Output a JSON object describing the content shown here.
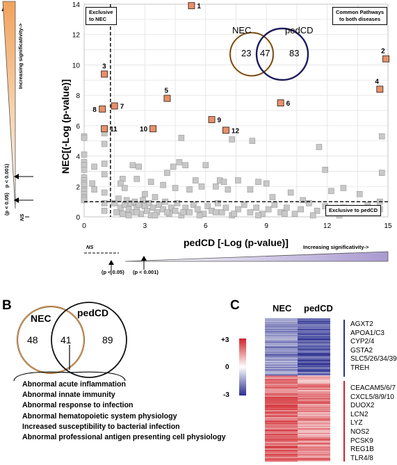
{
  "panels": {
    "a": "A",
    "b": "B",
    "c": "C"
  },
  "panel_a": {
    "left_arrow_label": "Increasing significativity->",
    "left_p1": "(p < 0.05)",
    "left_p2": "p < 0.001)",
    "left_ns": "NS",
    "bottom_ns": "NS",
    "bottom_p1": "(p < 0.05)",
    "bottom_p2": "(p < 0.001)",
    "bottom_arrow_label": "Increasing significativity->",
    "exclusive_nec_line1": "Exclusive",
    "exclusive_nec_line2": "to  NEC",
    "common_line1": "Common Pathways",
    "common_line2": "to both diseases",
    "exclusive_pedcd": "Exclusive to  pedCD",
    "venn": {
      "left_label": "NEC",
      "right_label": "pedCD",
      "left_only": "23",
      "both": "47",
      "right_only": "83"
    }
  },
  "chart_data": [
    {
      "type": "scatter",
      "xlabel": "pedCD [-Log (p-value)]",
      "ylabel": "NEC[(-Log (p-value)]",
      "xlim": [
        0,
        15
      ],
      "ylim": [
        0,
        14
      ],
      "xticks": [
        0,
        3,
        6,
        9,
        12,
        15
      ],
      "yticks": [
        0,
        2,
        4,
        6,
        8,
        10,
        12,
        14
      ],
      "grid": true,
      "thresholds": {
        "x": 1.3,
        "y": 1.0
      },
      "colors": {
        "highlight": "#e8906a",
        "highlight_edge": "#3a2a20",
        "grey": "#c8c8c8",
        "grey_edge": "#9a9a9a"
      },
      "highlighted": [
        {
          "label": "1",
          "x": 5.3,
          "y": 13.9
        },
        {
          "label": "2",
          "x": 14.9,
          "y": 10.4
        },
        {
          "label": "3",
          "x": 1.0,
          "y": 9.4
        },
        {
          "label": "4",
          "x": 14.6,
          "y": 8.4
        },
        {
          "label": "5",
          "x": 4.1,
          "y": 7.8
        },
        {
          "label": "6",
          "x": 9.7,
          "y": 7.5
        },
        {
          "label": "7",
          "x": 1.5,
          "y": 7.3
        },
        {
          "label": "8",
          "x": 0.9,
          "y": 7.1
        },
        {
          "label": "9",
          "x": 6.3,
          "y": 6.4
        },
        {
          "label": "10",
          "x": 3.4,
          "y": 5.8
        },
        {
          "label": "11",
          "x": 1.0,
          "y": 5.8
        },
        {
          "label": "12",
          "x": 7.0,
          "y": 5.7
        }
      ],
      "grey_points": [
        [
          0,
          5.3
        ],
        [
          0,
          5.2
        ],
        [
          0,
          4.1
        ],
        [
          0,
          3.6
        ],
        [
          0,
          3.4
        ],
        [
          0,
          3.1
        ],
        [
          0,
          2.6
        ],
        [
          0,
          2.4
        ],
        [
          0,
          2.2
        ],
        [
          0,
          2.1
        ],
        [
          0,
          1.8
        ],
        [
          0,
          1.7
        ],
        [
          0,
          1.5
        ],
        [
          0,
          1.3
        ],
        [
          0,
          1.2
        ],
        [
          0,
          1.1
        ],
        [
          0.5,
          3.3
        ],
        [
          0.5,
          1.8
        ],
        [
          0.4,
          2.2
        ],
        [
          1.0,
          5.5
        ],
        [
          1.0,
          4.8
        ],
        [
          1.0,
          3.5
        ],
        [
          1.0,
          2.8
        ],
        [
          1.0,
          1.6
        ],
        [
          1.0,
          0.4
        ],
        [
          1.0,
          0.9
        ],
        [
          1.9,
          2.5
        ],
        [
          1.8,
          2.2
        ],
        [
          2.4,
          3.4
        ],
        [
          2.0,
          1.9
        ],
        [
          2.7,
          3.3
        ],
        [
          2.6,
          2.5
        ],
        [
          3.0,
          1.5
        ],
        [
          3.3,
          2.3
        ],
        [
          3.5,
          1.3
        ],
        [
          3.9,
          2.1
        ],
        [
          4.1,
          2.9
        ],
        [
          4.4,
          3.3
        ],
        [
          4.5,
          1.9
        ],
        [
          4.7,
          3.6
        ],
        [
          5.0,
          3.4
        ],
        [
          5.2,
          1.8
        ],
        [
          5.5,
          2.4
        ],
        [
          5.8,
          2.0
        ],
        [
          6.0,
          3.4
        ],
        [
          6.5,
          2.0
        ],
        [
          6.7,
          2.4
        ],
        [
          6.9,
          2.3
        ],
        [
          7.1,
          1.8
        ],
        [
          7.6,
          2.4
        ],
        [
          8.2,
          1.8
        ],
        [
          8.6,
          2.3
        ],
        [
          9.0,
          2.2
        ],
        [
          9.3,
          1.3
        ],
        [
          10.2,
          1.6
        ],
        [
          10.8,
          1.1
        ],
        [
          11.6,
          4.6
        ],
        [
          12.2,
          1.7
        ],
        [
          12.8,
          1.9
        ],
        [
          13.6,
          1.5
        ],
        [
          11.9,
          3.1
        ],
        [
          14.7,
          2.9
        ],
        [
          14.6,
          1.0
        ],
        [
          14.7,
          5.3
        ],
        [
          7.3,
          5.1
        ],
        [
          4.8,
          5.2
        ],
        [
          8.3,
          5.0
        ],
        [
          1.5,
          0.9
        ],
        [
          1.7,
          1.2
        ],
        [
          1.8,
          0.6
        ],
        [
          2.0,
          0.8
        ],
        [
          2.1,
          1.1
        ],
        [
          2.2,
          0.5
        ],
        [
          2.3,
          0.9
        ],
        [
          2.4,
          0.3
        ],
        [
          2.5,
          1.0
        ],
        [
          2.6,
          0.6
        ],
        [
          2.7,
          0.8
        ],
        [
          2.8,
          0.2
        ],
        [
          2.9,
          1.1
        ],
        [
          3.0,
          0.7
        ],
        [
          3.1,
          0.4
        ],
        [
          3.2,
          0.9
        ],
        [
          3.3,
          0.1
        ],
        [
          3.4,
          0.6
        ],
        [
          3.6,
          0.3
        ],
        [
          3.7,
          0.8
        ],
        [
          3.9,
          0.5
        ],
        [
          4.0,
          1.0
        ],
        [
          4.2,
          0.2
        ],
        [
          4.3,
          0.6
        ],
        [
          4.5,
          0.4
        ],
        [
          4.6,
          0.9
        ],
        [
          4.8,
          0.1
        ],
        [
          5.0,
          0.6
        ],
        [
          5.2,
          0.3
        ],
        [
          5.4,
          0.8
        ],
        [
          5.6,
          0.5
        ],
        [
          5.9,
          0.2
        ],
        [
          6.1,
          0.7
        ],
        [
          6.3,
          0.4
        ],
        [
          6.6,
          0.9
        ],
        [
          6.8,
          0.3
        ],
        [
          7.0,
          0.6
        ],
        [
          7.3,
          0.1
        ],
        [
          7.6,
          0.5
        ],
        [
          7.9,
          0.8
        ],
        [
          8.2,
          0.3
        ],
        [
          8.5,
          0.6
        ],
        [
          8.8,
          0.2
        ],
        [
          9.1,
          0.5
        ],
        [
          9.4,
          0.8
        ],
        [
          9.7,
          0.3
        ],
        [
          10.0,
          0.6
        ],
        [
          10.4,
          0.2
        ],
        [
          10.7,
          0.5
        ],
        [
          11.1,
          0.9
        ],
        [
          11.5,
          0.4
        ],
        [
          11.9,
          0.7
        ],
        [
          12.3,
          0.3
        ],
        [
          12.8,
          0.6
        ],
        [
          13.4,
          0.4
        ],
        [
          14.0,
          0.8
        ],
        [
          14.6,
          0.5
        ],
        [
          1.6,
          0.3
        ],
        [
          1.9,
          0.2
        ],
        [
          2.2,
          0.1
        ],
        [
          2.6,
          0.3
        ],
        [
          3.5,
          0.1
        ],
        [
          4.1,
          0.3
        ],
        [
          4.9,
          0.3
        ],
        [
          5.7,
          0.1
        ],
        [
          6.5,
          0.3
        ],
        [
          7.4,
          0.2
        ],
        [
          8.6,
          0.1
        ],
        [
          9.9,
          0.2
        ],
        [
          11.3,
          0.1
        ],
        [
          12.6,
          0.1
        ]
      ]
    },
    {
      "type": "heatmap",
      "columns": [
        "NEC",
        "pedCD"
      ],
      "colorbar_ticks": [
        "+3",
        "0",
        "-3"
      ],
      "colorbar_range": [
        -3,
        3
      ],
      "colors": {
        "high": "#d0232a",
        "mid": "#ffffff",
        "low": "#2b2f8f"
      },
      "down_genes": [
        "AGXT2",
        "APOA1/C3",
        "CYP2/4",
        "GSTA2",
        "SLC5/26/34/39",
        "TREH"
      ],
      "up_genes": [
        "CEACAM5/6/7",
        "CXCL5/8/9/10",
        "DUOX2",
        "LCN2",
        "LYZ",
        "NOS2",
        "PCSK9",
        "REG1B",
        "TLR4/8"
      ]
    }
  ],
  "panel_b": {
    "venn": {
      "left_label": "NEC",
      "right_label": "pedCD",
      "left_only": "48",
      "both": "41",
      "right_only": "89"
    },
    "items": [
      "Abnormal acute inflammation",
      "Abnormal innate immunity",
      "Abnormal response to infection",
      "Abnormal hematopoietic system physiology",
      "Increased susceptibility to bacterial infection",
      "Abnormal professional antigen presenting cell  physiology"
    ]
  }
}
